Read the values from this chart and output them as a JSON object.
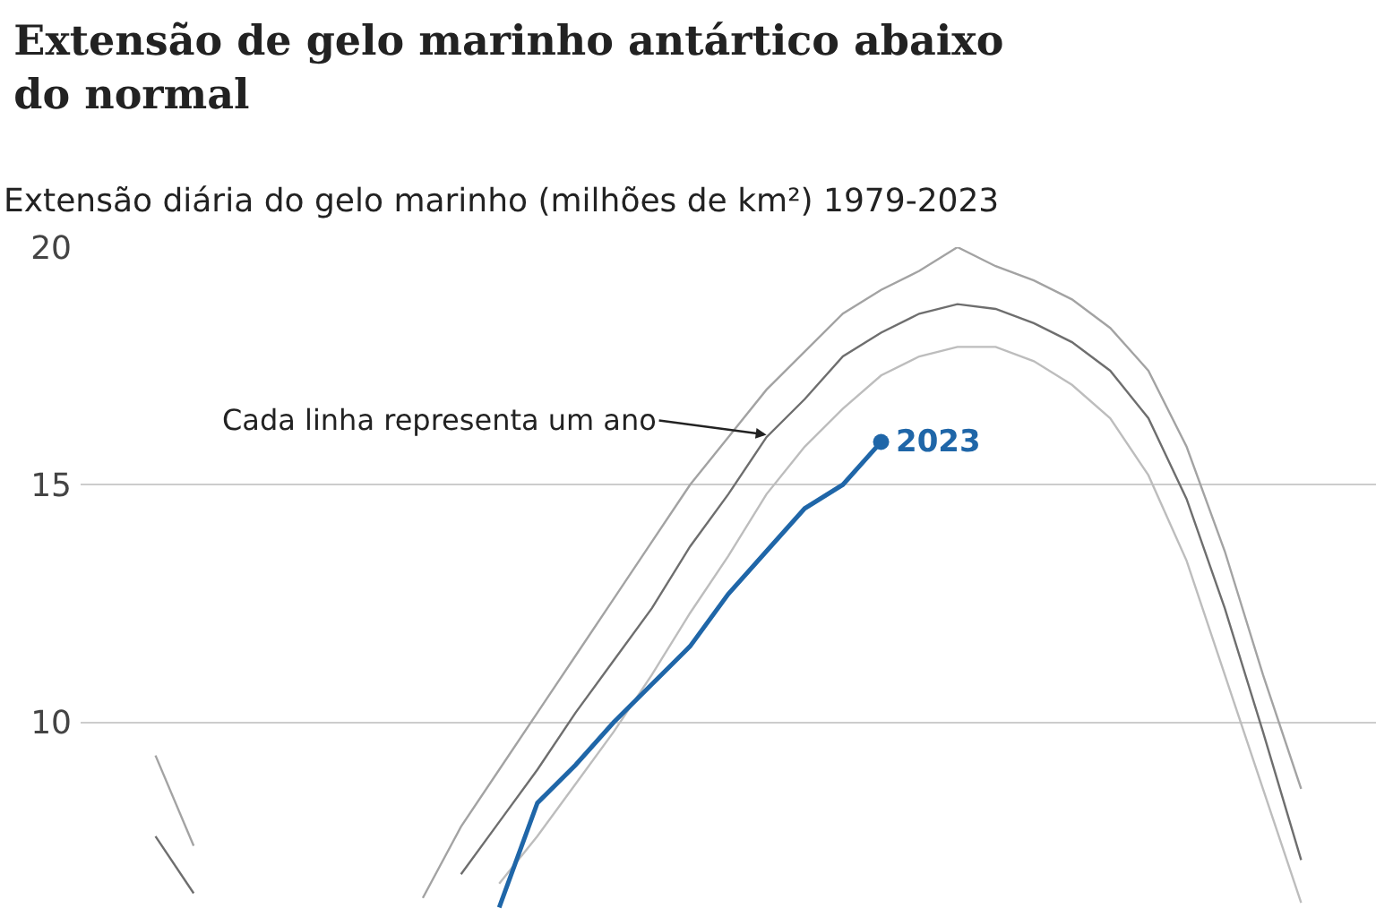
{
  "chart_data": {
    "type": "line",
    "title": "Extensão de gelo marinho antártico abaixo do normal",
    "subtitle": "Extensão diária do gelo marinho (milhões de km²) 1979-2023",
    "categories": [
      null,
      null,
      null,
      null,
      null,
      null,
      null,
      null,
      null,
      null,
      null,
      null,
      null,
      null,
      null,
      null,
      null,
      null,
      null,
      null,
      null,
      null,
      null,
      null,
      null,
      null,
      null,
      null,
      null,
      null,
      null
    ],
    "series": [
      {
        "color": "#a3a3a3",
        "values": [
          9.3,
          7.4,
          null,
          null,
          null,
          null,
          null,
          null,
          null,
          null,
          null,
          null,
          null,
          null,
          null,
          null,
          null,
          null,
          null,
          null,
          null,
          null,
          null,
          null,
          null,
          null,
          null,
          null,
          null,
          null,
          null
        ]
      },
      {
        "color": "#6e6e6e",
        "values": [
          7.6,
          6.4,
          null,
          null,
          null,
          null,
          null,
          null,
          null,
          null,
          null,
          null,
          null,
          null,
          null,
          null,
          null,
          null,
          null,
          null,
          null,
          null,
          null,
          null,
          null,
          null,
          null,
          null,
          null,
          null,
          null
        ]
      },
      {
        "color": "#a3a3a3",
        "values": [
          null,
          null,
          null,
          null,
          null,
          null,
          null,
          6.3,
          7.8,
          9.0,
          10.2,
          11.4,
          12.6,
          13.8,
          15.0,
          16.0,
          17.0,
          17.8,
          18.6,
          19.1,
          19.5,
          20.0,
          19.6,
          19.3,
          18.9,
          18.3,
          17.4,
          15.8,
          13.6,
          11.0,
          8.6
        ]
      },
      {
        "color": "#6e6e6e",
        "values": [
          null,
          null,
          null,
          null,
          null,
          null,
          null,
          null,
          6.8,
          7.9,
          9.0,
          10.2,
          11.3,
          12.4,
          13.7,
          14.8,
          16.0,
          16.8,
          17.7,
          18.2,
          18.6,
          18.8,
          18.7,
          18.4,
          18.0,
          17.4,
          16.4,
          14.7,
          12.4,
          9.8,
          7.1
        ]
      },
      {
        "color": "#bdbdbd",
        "values": [
          null,
          null,
          null,
          null,
          null,
          null,
          null,
          null,
          null,
          6.6,
          7.6,
          8.7,
          9.8,
          11.0,
          12.3,
          13.5,
          14.8,
          15.8,
          16.6,
          17.3,
          17.7,
          17.9,
          17.9,
          17.6,
          17.1,
          16.4,
          15.2,
          13.4,
          11.0,
          8.6,
          6.2
        ]
      },
      {
        "type": "scatter",
        "color": "#1f66a8",
        "values": [
          null,
          null,
          null,
          null,
          null,
          null,
          null,
          null,
          null,
          null,
          null,
          null,
          null,
          null,
          null,
          null,
          null,
          null,
          null,
          15.9,
          null,
          null,
          null,
          null,
          null,
          null,
          null,
          null,
          null,
          null,
          null
        ]
      },
      {
        "name": "2023",
        "color": "#1f66a8",
        "values": [
          null,
          null,
          null,
          null,
          null,
          null,
          null,
          null,
          null,
          6.1,
          8.3,
          9.1,
          10.0,
          10.8,
          11.6,
          12.7,
          13.6,
          14.5,
          15.0,
          15.9,
          null,
          null,
          null,
          null,
          null,
          null,
          null,
          null,
          null,
          null,
          null
        ]
      }
    ],
    "ylim": [
      5.9,
      20
    ],
    "yticks": [
      10,
      15,
      20
    ],
    "grid": "y",
    "tick_labels": "y",
    "annotations": [
      "Cada linha representa um ano"
    ]
  }
}
